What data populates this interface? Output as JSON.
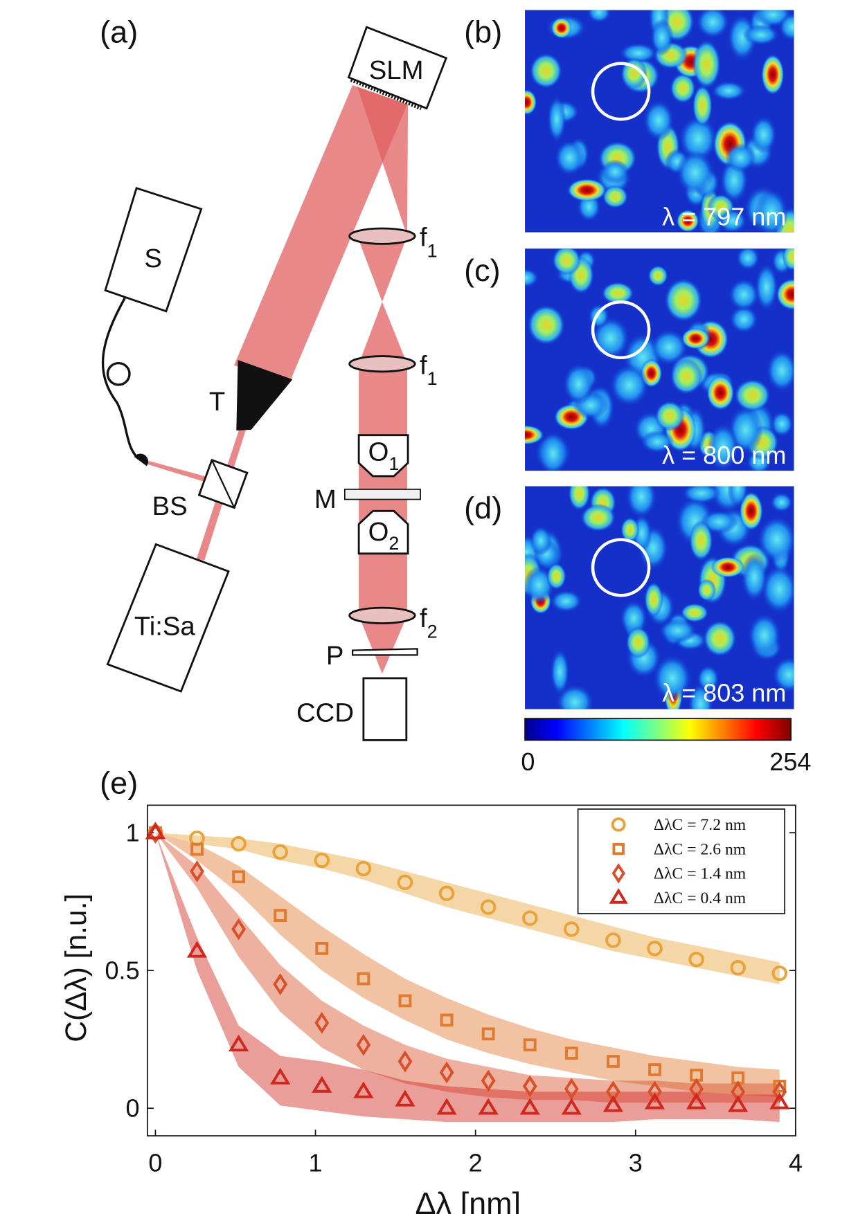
{
  "panel_labels": [
    "(a)",
    "(b)",
    "(c)",
    "(d)",
    "(e)"
  ],
  "diagram": {
    "slm": "SLM",
    "source": "S",
    "telescope": "T",
    "beam_splitter": "BS",
    "laser": "Ti:Sa",
    "mirror": "M",
    "polarizer": "P",
    "camera": "CCD",
    "lens1": {
      "name": "f",
      "sub": "1"
    },
    "lens2": {
      "name": "f",
      "sub": "2"
    },
    "objective1": {
      "name": "O",
      "sub": "1"
    },
    "objective2": {
      "name": "O",
      "sub": "2"
    }
  },
  "images": {
    "labels": [
      "λ = 797 nm",
      "λ = 800 nm",
      "λ = 803 nm"
    ],
    "colorbar_ticks": [
      0,
      254
    ]
  },
  "chart_data": {
    "type": "scatter",
    "xlabel": "Δλ [nm]",
    "ylabel": "C(Δλ) [n.u.]",
    "x": [
      0,
      0.26,
      0.52,
      0.78,
      1.04,
      1.3,
      1.56,
      1.82,
      2.08,
      2.34,
      2.6,
      2.86,
      3.12,
      3.38,
      3.64,
      3.9
    ],
    "xlim": [
      -0.05,
      4
    ],
    "ylim": [
      -0.1,
      1.1
    ],
    "xticks": [
      0,
      1,
      2,
      3,
      4
    ],
    "yticks": [
      0,
      0.5,
      1
    ],
    "legend": "upper right",
    "series": [
      {
        "name": "ΔλC = 7.2 nm",
        "color": "#e8a33a",
        "marker": "circle",
        "values": [
          1.0,
          0.98,
          0.96,
          0.93,
          0.9,
          0.87,
          0.82,
          0.78,
          0.73,
          0.69,
          0.65,
          0.61,
          0.58,
          0.54,
          0.51,
          0.49
        ],
        "band_low": [
          1,
          0.96,
          0.94,
          0.9,
          0.87,
          0.83,
          0.78,
          0.73,
          0.69,
          0.65,
          0.61,
          0.57,
          0.54,
          0.51,
          0.48,
          0.45
        ],
        "band_high": [
          1,
          0.99,
          0.98,
          0.96,
          0.93,
          0.9,
          0.86,
          0.82,
          0.78,
          0.74,
          0.7,
          0.66,
          0.62,
          0.59,
          0.56,
          0.53
        ]
      },
      {
        "name": "ΔλC = 2.6 nm",
        "color": "#e07a30",
        "marker": "square",
        "values": [
          1.0,
          0.94,
          0.84,
          0.7,
          0.58,
          0.47,
          0.39,
          0.32,
          0.27,
          0.23,
          0.2,
          0.17,
          0.14,
          0.12,
          0.11,
          0.08
        ],
        "band_low": [
          1,
          0.9,
          0.78,
          0.63,
          0.5,
          0.4,
          0.32,
          0.25,
          0.2,
          0.16,
          0.13,
          0.1,
          0.08,
          0.06,
          0.05,
          0.04
        ],
        "band_high": [
          1,
          0.96,
          0.88,
          0.77,
          0.66,
          0.56,
          0.47,
          0.4,
          0.34,
          0.29,
          0.25,
          0.22,
          0.19,
          0.17,
          0.15,
          0.14
        ]
      },
      {
        "name": "ΔλC = 1.4 nm",
        "color": "#d94f2a",
        "marker": "diamond",
        "values": [
          1.0,
          0.86,
          0.65,
          0.45,
          0.31,
          0.23,
          0.17,
          0.13,
          0.1,
          0.08,
          0.07,
          0.06,
          0.06,
          0.07,
          0.06,
          0.06
        ],
        "band_low": [
          1,
          0.8,
          0.55,
          0.35,
          0.22,
          0.14,
          0.09,
          0.06,
          0.04,
          0.03,
          0.03,
          0.02,
          0.02,
          0.02,
          0.02,
          0.02
        ],
        "band_high": [
          1,
          0.88,
          0.7,
          0.52,
          0.39,
          0.3,
          0.23,
          0.18,
          0.15,
          0.12,
          0.11,
          0.1,
          0.1,
          0.09,
          0.09,
          0.09
        ]
      },
      {
        "name": "ΔλC = 0.4 nm",
        "color": "#d0281f",
        "marker": "triangle",
        "values": [
          1.0,
          0.57,
          0.23,
          0.11,
          0.08,
          0.06,
          0.03,
          0.0,
          0.0,
          0.0,
          0.0,
          0.01,
          0.02,
          0.02,
          0.01,
          0.02
        ],
        "band_low": [
          1,
          0.5,
          0.15,
          0.01,
          -0.01,
          -0.03,
          -0.04,
          -0.05,
          -0.05,
          -0.05,
          -0.05,
          -0.05,
          -0.04,
          -0.04,
          -0.04,
          -0.05
        ],
        "band_high": [
          1,
          0.62,
          0.3,
          0.19,
          0.17,
          0.14,
          0.1,
          0.08,
          0.07,
          0.06,
          0.06,
          0.06,
          0.06,
          0.06,
          0.05,
          0.05
        ]
      }
    ]
  }
}
